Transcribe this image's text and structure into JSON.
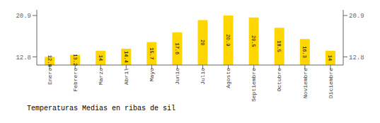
{
  "chart_data": {
    "type": "bar",
    "title": "Temperaturas Medias en ribas de sil",
    "categories": [
      "Enero",
      "Febrero",
      "Marzo",
      "Abril",
      "Mayo",
      "Junio",
      "Julio",
      "Agosto",
      "Septiembre",
      "Octubre",
      "Noviembre",
      "Diciembre"
    ],
    "values": [
      12.8,
      13.2,
      14.0,
      14.4,
      15.7,
      17.6,
      20.0,
      20.9,
      20.5,
      18.5,
      16.3,
      14.0
    ],
    "color": "#FFD700",
    "ylim": [
      11.2,
      22.0
    ],
    "yticks": [
      12.8,
      20.9
    ],
    "grid": true,
    "data_labels": true
  }
}
